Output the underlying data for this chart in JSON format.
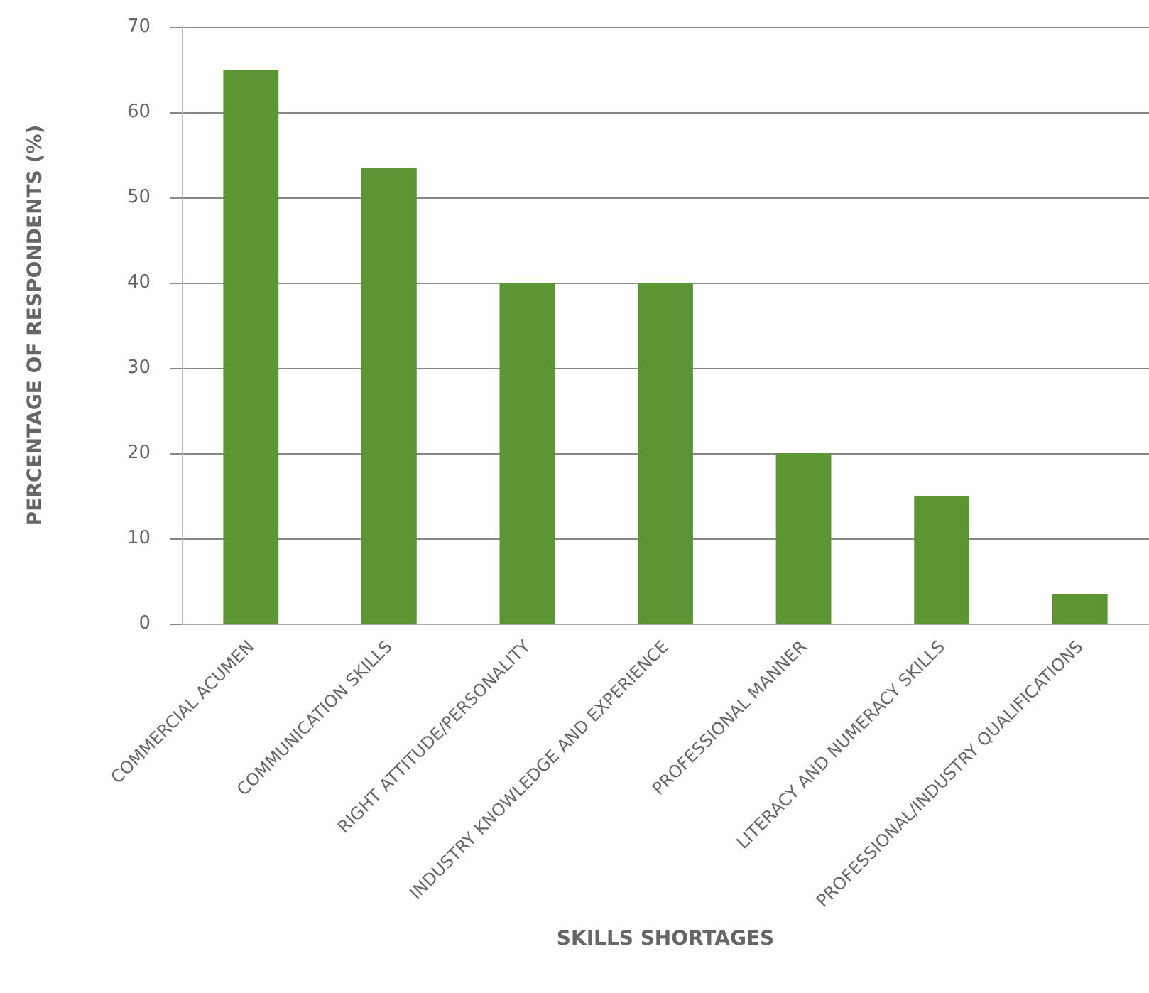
{
  "chart_data": {
    "type": "bar",
    "xlabel": "SKILLS SHORTAGES",
    "ylabel": "PERCENTAGE OF RESPONDENTS (%)",
    "categories": [
      "COMMERCIAL ACUMEN",
      "COMMUNICATION SKILLS",
      "RIGHT ATTITUDE/PERSONALITY",
      "INDUSTRY KNOWLEDGE AND EXPERIENCE",
      "PROFESSIONAL MANNER",
      "LITERACY AND NUMERACY SKILLS",
      "PROFESSIONAL/INDUSTRY QUALIFICATIONS"
    ],
    "values": [
      65,
      53.5,
      40,
      40,
      20,
      15,
      3.5
    ],
    "color": "#5c9632",
    "ylim": [
      0,
      70
    ],
    "yticks": [
      0,
      10,
      20,
      30,
      40,
      50,
      60,
      70
    ],
    "grid": "y"
  }
}
